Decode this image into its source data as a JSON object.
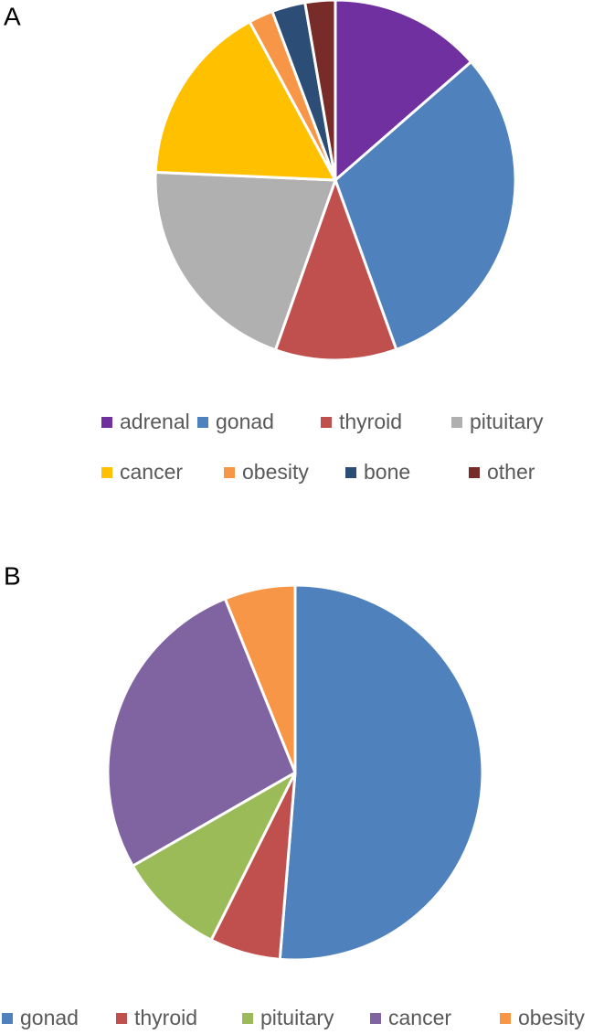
{
  "chart_data": [
    {
      "type": "pie",
      "panel_label": "A",
      "categories": [
        "adrenal",
        "gonad",
        "thyroid",
        "pituitary",
        "cancer",
        "obesity",
        "bone",
        "other"
      ],
      "values": [
        13.6,
        30.9,
        10.9,
        20.3,
        16.4,
        2.2,
        3.0,
        2.7
      ],
      "colors": [
        "#7030a0",
        "#4f81bd",
        "#c0504d",
        "#b0b0b0",
        "#ffc000",
        "#f79646",
        "#2c4d75",
        "#772c2a"
      ],
      "legend": "bottom"
    },
    {
      "type": "pie",
      "panel_label": "B",
      "categories": [
        "gonad",
        "thyroid",
        "pituitary",
        "cancer",
        "obesity"
      ],
      "values": [
        51.3,
        6.1,
        9.3,
        27.2,
        6.1
      ],
      "colors": [
        "#4f81bd",
        "#c0504d",
        "#9bbb59",
        "#8064a2",
        "#f79646"
      ],
      "legend": "bottom"
    }
  ]
}
